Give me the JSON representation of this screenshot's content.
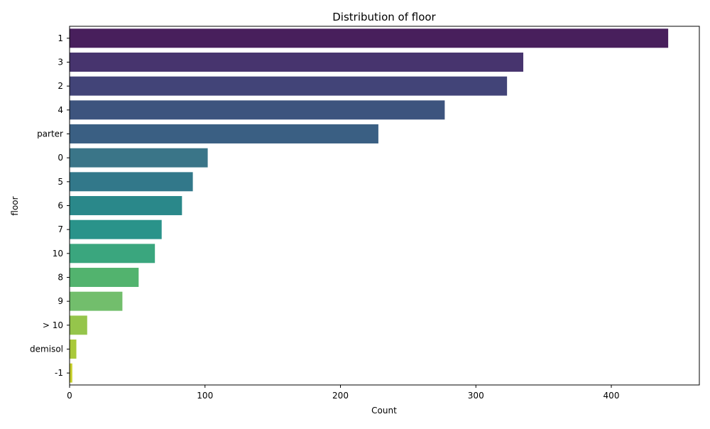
{
  "chart_data": {
    "type": "bar",
    "orientation": "horizontal",
    "title": "Distribution of floor",
    "xlabel": "Count",
    "ylabel": "floor",
    "categories": [
      "1",
      "3",
      "2",
      "4",
      "parter",
      "0",
      "5",
      "6",
      "7",
      "10",
      "8",
      "9",
      "> 10",
      "demisol",
      "-1"
    ],
    "values": [
      442,
      335,
      323,
      277,
      228,
      102,
      91,
      83,
      68,
      63,
      51,
      39,
      13,
      5,
      2
    ],
    "xlim": [
      0,
      465
    ],
    "xticks": [
      0,
      100,
      200,
      300,
      400
    ],
    "grid": false,
    "legend": false,
    "colors": [
      "#481f5c",
      "#47346e",
      "#424478",
      "#3d547e",
      "#3a5f83",
      "#3a7588",
      "#32788a",
      "#2a888a",
      "#2a938a",
      "#3aa67e",
      "#52b36e",
      "#72be6c",
      "#95c54b",
      "#a9c93a",
      "#c7d02c"
    ]
  }
}
